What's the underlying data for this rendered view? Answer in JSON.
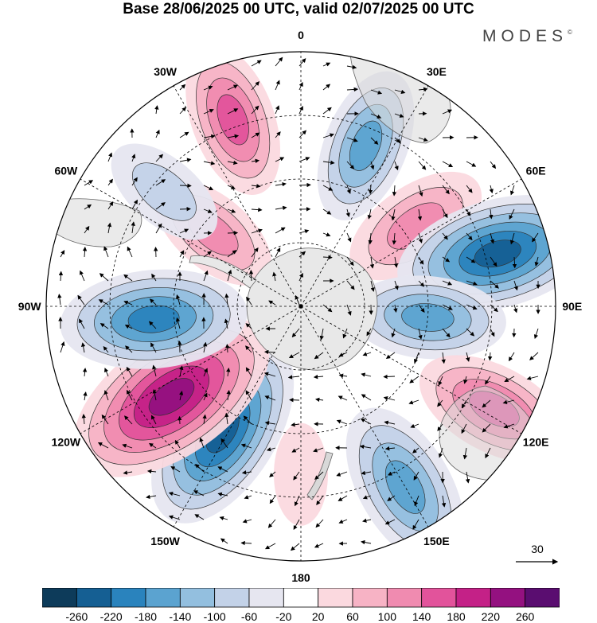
{
  "title": "Base 28/06/2025 00 UTC, valid 02/07/2025 00 UTC",
  "brand": "MODES",
  "brand_mark": "©",
  "lon_labels": [
    {
      "key": "0",
      "text": "0",
      "lon": 0
    },
    {
      "key": "30e",
      "text": "30E",
      "lon": 30
    },
    {
      "key": "60e",
      "text": "60E",
      "lon": 60
    },
    {
      "key": "90e",
      "text": "90E",
      "lon": 90
    },
    {
      "key": "120e",
      "text": "120E",
      "lon": 120
    },
    {
      "key": "150e",
      "text": "150E",
      "lon": 150
    },
    {
      "key": "180",
      "text": "180",
      "lon": 180
    },
    {
      "key": "150w",
      "text": "150W",
      "lon": -150
    },
    {
      "key": "120w",
      "text": "120W",
      "lon": -120
    },
    {
      "key": "90w",
      "text": "90W",
      "lon": -90
    },
    {
      "key": "60w",
      "text": "60W",
      "lon": -60
    },
    {
      "key": "30w",
      "text": "30W",
      "lon": -30
    }
  ],
  "vector_reference": {
    "label": "30"
  },
  "colorbar": {
    "labels": [
      "-260",
      "-220",
      "-180",
      "-140",
      "-100",
      "-60",
      "-20",
      "20",
      "60",
      "100",
      "140",
      "180",
      "220",
      "260"
    ],
    "colors": [
      "#0d3b5a",
      "#155f93",
      "#2a83bd",
      "#5ba3d0",
      "#93bfdf",
      "#c3d2e8",
      "#e6e6f0",
      "#ffffff",
      "#fbd9df",
      "#f7b3c5",
      "#f08bb0",
      "#e2539b",
      "#c42187",
      "#941180",
      "#5a0d70"
    ]
  },
  "anomalies": [
    {
      "lon": -20,
      "r": 0.78,
      "value": 150
    },
    {
      "lon": 22,
      "r": 0.68,
      "value": -150
    },
    {
      "lon": 55,
      "r": 0.55,
      "value": 140
    },
    {
      "lon": 75,
      "r": 0.8,
      "value": -230
    },
    {
      "lon": 95,
      "r": 0.5,
      "value": -150
    },
    {
      "lon": 118,
      "r": 0.86,
      "value": 160
    },
    {
      "lon": 150,
      "r": 0.82,
      "value": -180
    },
    {
      "lon": 180,
      "r": 0.66,
      "value": 60
    },
    {
      "lon": -148,
      "r": 0.58,
      "value": -230
    },
    {
      "lon": -125,
      "r": 0.62,
      "value": 260
    },
    {
      "lon": -95,
      "r": 0.58,
      "value": -200
    },
    {
      "lon": -50,
      "r": 0.45,
      "value": 120
    },
    {
      "lon": -50,
      "r": 0.7,
      "value": -100
    }
  ]
}
